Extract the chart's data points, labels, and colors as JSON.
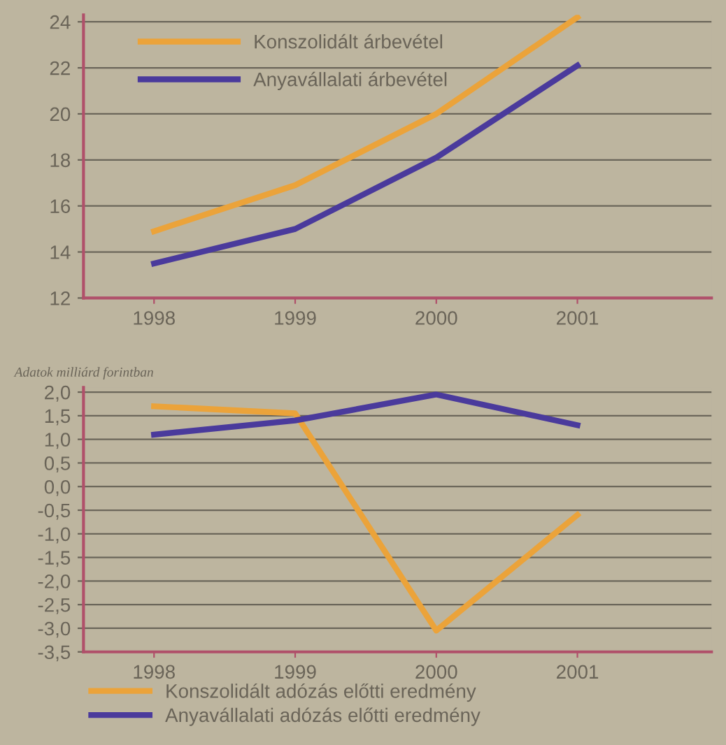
{
  "chart_data": [
    {
      "type": "line",
      "categories": [
        "1998",
        "1999",
        "2000",
        "2001"
      ],
      "series": [
        {
          "name": "Konszolidált árbevétel",
          "color": "#eba33a",
          "values": [
            14.9,
            16.9,
            20.0,
            24.2
          ]
        },
        {
          "name": "Anyavállalati árbevétel",
          "color": "#4a3a9c",
          "values": [
            13.5,
            15.0,
            18.1,
            22.1
          ]
        }
      ],
      "ylim": [
        12,
        24.3
      ],
      "yticks": [
        12,
        14,
        16,
        18,
        20,
        22,
        24
      ],
      "grid": "y",
      "legend": "top left",
      "marker": "none",
      "line_style": "solid"
    },
    {
      "type": "line",
      "ylabel": "Adatok milliárd forintban",
      "categories": [
        "1998",
        "1999",
        "2000",
        "2001"
      ],
      "series": [
        {
          "name": "Konszolidált adózás előtti eredmény",
          "color": "#eba33a",
          "values": [
            1.7,
            1.55,
            -3.05,
            -0.6
          ]
        },
        {
          "name": "Anyavállalati adózás előtti eredmény",
          "color": "#4a3a9c",
          "values": [
            1.1,
            1.4,
            1.95,
            1.3
          ]
        }
      ],
      "ylim": [
        -3.5,
        2.1
      ],
      "yticks": [
        {
          "value": -3.5,
          "label": "-3,5"
        },
        {
          "value": -3.0,
          "label": "-3,0"
        },
        {
          "value": -2.5,
          "label": "-2,5"
        },
        {
          "value": -2.0,
          "label": "-2,0"
        },
        {
          "value": -1.5,
          "label": "-1,5"
        },
        {
          "value": -1.0,
          "label": "-1,0"
        },
        {
          "value": -0.5,
          "label": "-0,5"
        },
        {
          "value": 0.0,
          "label": "0,0"
        },
        {
          "value": 0.5,
          "label": "0,5"
        },
        {
          "value": 1.0,
          "label": "1,0"
        },
        {
          "value": 1.5,
          "label": "1,5"
        },
        {
          "value": 2.0,
          "label": "2,0"
        }
      ],
      "grid": "y",
      "legend": "bottom",
      "marker": "none",
      "line_style": "solid"
    }
  ]
}
